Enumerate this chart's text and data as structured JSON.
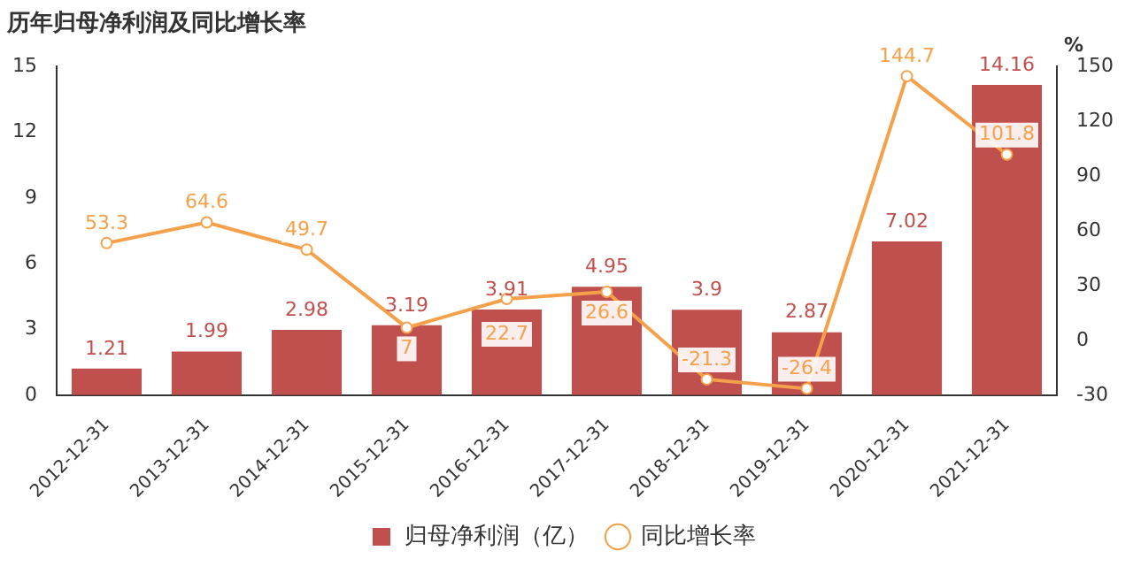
{
  "chart_data": {
    "type": "bar",
    "title": "历年归母净利润及同比增长率",
    "y2label": "%",
    "categories": [
      "2012-12-31",
      "2013-12-31",
      "2014-12-31",
      "2015-12-31",
      "2016-12-31",
      "2017-12-31",
      "2018-12-31",
      "2019-12-31",
      "2020-12-31",
      "2021-12-31"
    ],
    "series": [
      {
        "name": "归母净利润（亿）",
        "color": "#c0504d",
        "values": [
          1.21,
          1.99,
          2.98,
          3.19,
          3.91,
          4.95,
          3.9,
          2.87,
          7.02,
          14.16
        ]
      },
      {
        "name": "同比增长率",
        "type": "line",
        "axis": "y2",
        "color": "#f5a04a",
        "values": [
          53.3,
          64.6,
          49.7,
          7.0,
          22.7,
          26.6,
          -21.3,
          -26.4,
          144.7,
          101.8
        ]
      }
    ],
    "ylim": [
      0,
      15
    ],
    "yticks": [
      0,
      3,
      6,
      9,
      12,
      15
    ],
    "y2lim": [
      -30,
      150
    ],
    "y2ticks": [
      -30,
      0,
      30,
      60,
      90,
      120,
      150
    ],
    "data_labels": true,
    "legend": "bottom",
    "marker": "circle",
    "grid": false
  }
}
